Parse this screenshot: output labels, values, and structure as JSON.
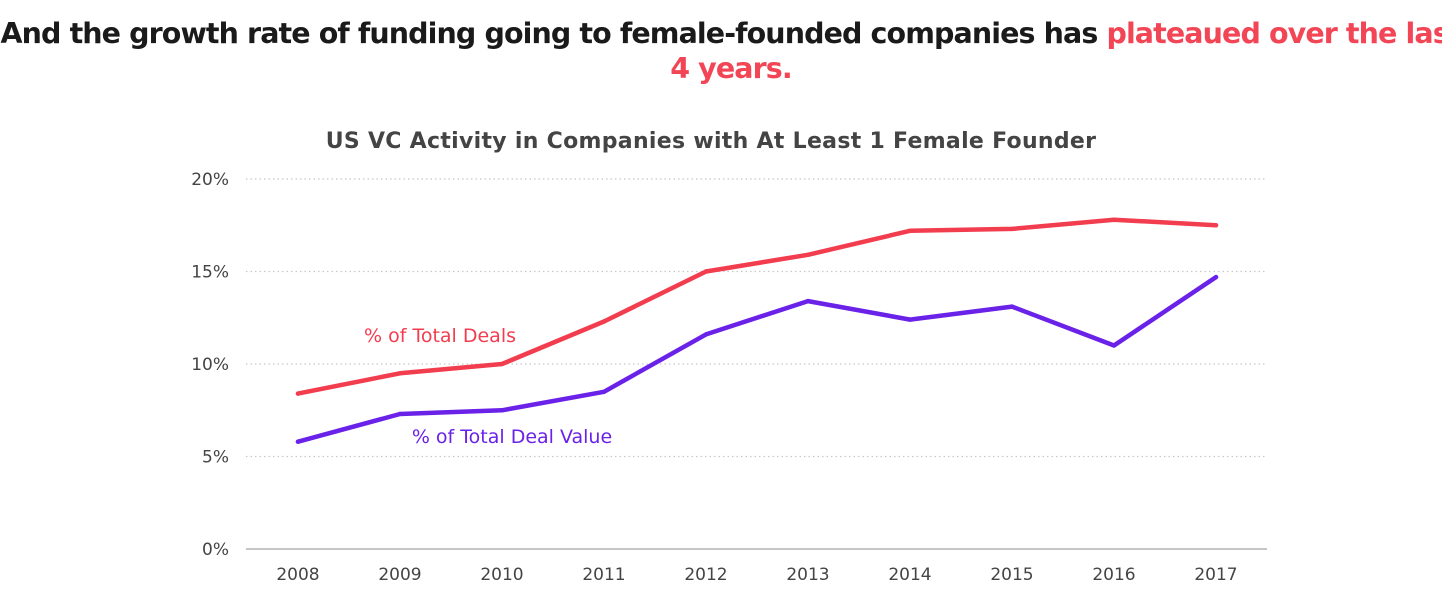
{
  "headline": {
    "text": "And the growth rate of funding going to female-founded companies has ",
    "highlight_line1": "plateaued over the last",
    "highlight_line2": "4 years."
  },
  "colors": {
    "accent": "#f24555",
    "deals": "#f23d4f",
    "deal_value": "#6a22e8",
    "grid": "#c8c8c8",
    "axis": "#b3b3b3",
    "text": "#444444"
  },
  "chart_data": {
    "type": "line",
    "title": "US VC Activity in Companies with At Least 1 Female Founder",
    "xlabel": "",
    "ylabel": "",
    "x": [
      "2008",
      "2009",
      "2010",
      "2011",
      "2012",
      "2013",
      "2014",
      "2015",
      "2016",
      "2017"
    ],
    "ylim": [
      0,
      20
    ],
    "yticks": [
      0,
      5,
      10,
      15,
      20
    ],
    "ytick_labels": [
      "0%",
      "5%",
      "10%",
      "15%",
      "20%"
    ],
    "grid": true,
    "grid_style": "dotted",
    "legend": "none",
    "series": [
      {
        "name": "% of Total Deals",
        "color": "#f23d4f",
        "values": [
          8.4,
          9.5,
          10.0,
          12.3,
          15.0,
          15.9,
          17.2,
          17.3,
          17.8,
          17.5
        ]
      },
      {
        "name": "% of Total Deal Value",
        "color": "#6a22e8",
        "values": [
          5.8,
          7.3,
          7.5,
          8.5,
          11.6,
          13.4,
          12.4,
          13.1,
          11.0,
          14.7
        ]
      }
    ]
  }
}
